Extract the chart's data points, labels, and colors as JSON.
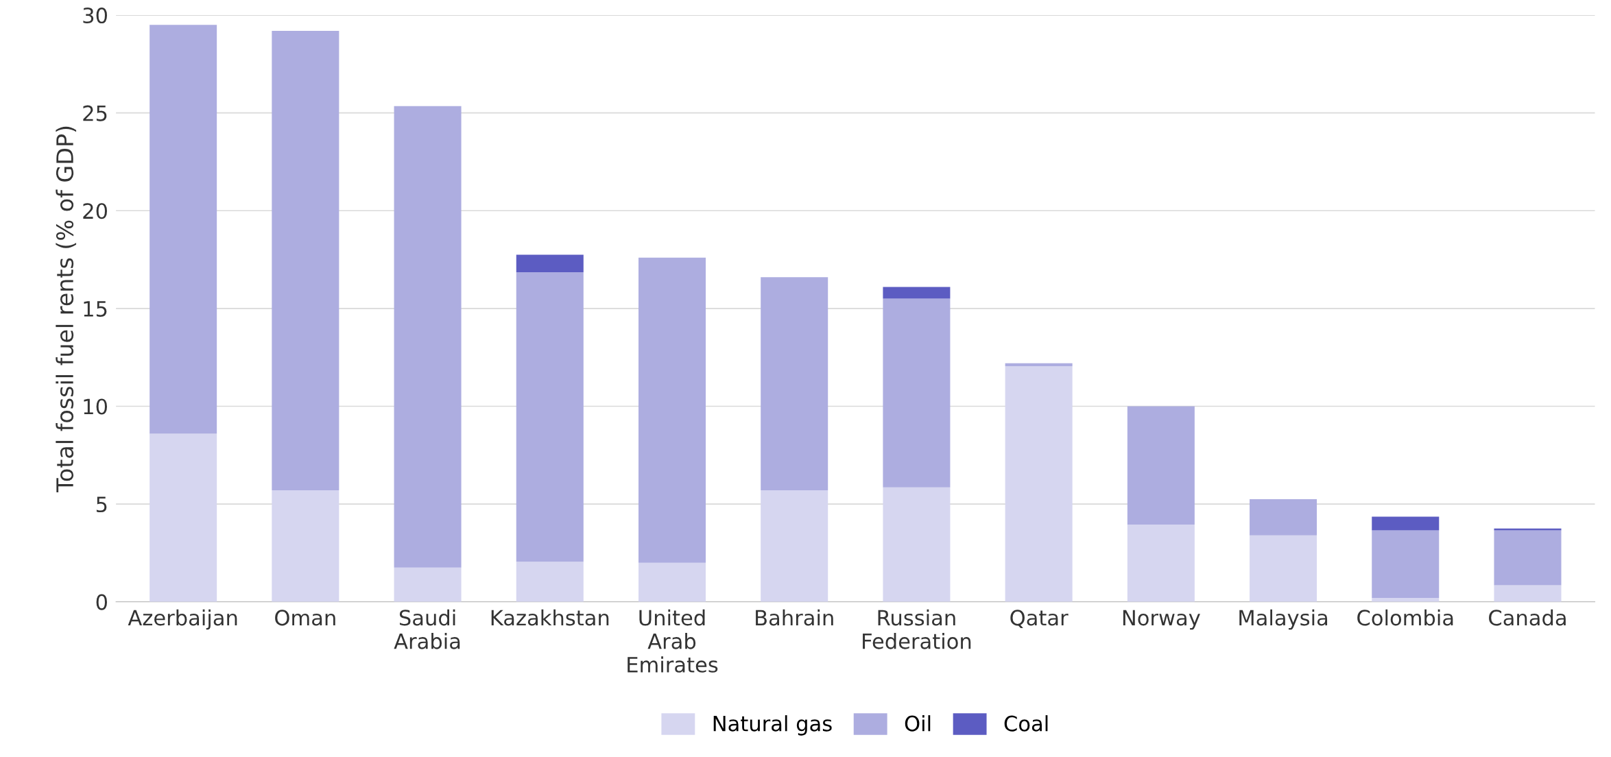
{
  "chart_data": {
    "type": "bar",
    "stacked": true,
    "ylabel": "Total fossil fuel rents (% of GDP)",
    "categories": [
      "Azerbaijan",
      "Oman",
      "Saudi\nArabia",
      "Kazakhstan",
      "United\nArab\nEmirates",
      "Bahrain",
      "Russian\nFederation",
      "Qatar",
      "Norway",
      "Malaysia",
      "Colombia",
      "Canada"
    ],
    "series": [
      {
        "name": "Natural gas",
        "color": "#d6d6f0",
        "values": [
          8.6,
          5.7,
          1.75,
          2.05,
          2.0,
          5.7,
          5.85,
          12.05,
          3.95,
          3.4,
          0.2,
          0.85
        ]
      },
      {
        "name": "Oil",
        "color": "#adade0",
        "values": [
          20.9,
          23.5,
          23.6,
          14.8,
          15.6,
          10.9,
          9.65,
          0.15,
          6.05,
          1.85,
          3.45,
          2.8
        ]
      },
      {
        "name": "Coal",
        "color": "#5c5cc2",
        "values": [
          null,
          null,
          null,
          0.9,
          null,
          null,
          0.6,
          null,
          null,
          null,
          0.7,
          0.1
        ]
      }
    ],
    "ylim": [
      0,
      30
    ],
    "yticks": [
      0,
      5,
      10,
      15,
      20,
      25,
      30
    ],
    "grid": "y",
    "legend": "bottom"
  }
}
